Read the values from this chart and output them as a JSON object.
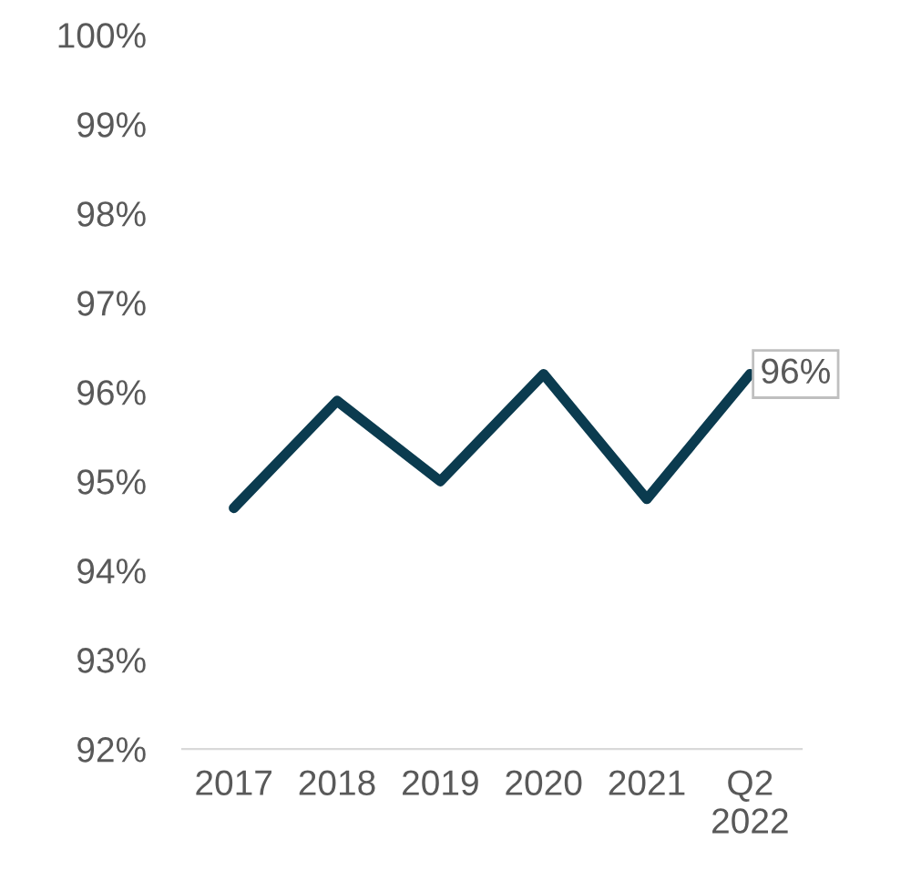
{
  "chart_data": {
    "type": "line",
    "categories": [
      "2017",
      "2018",
      "2019",
      "2020",
      "2021",
      "Q2\n2022"
    ],
    "series": [
      {
        "color": "#0b3b4f",
        "values": [
          94.7,
          95.9,
          95.0,
          96.2,
          94.8,
          96.2
        ],
        "value_labels": [
          null,
          null,
          null,
          null,
          null,
          "96%"
        ]
      }
    ],
    "ylim": [
      92,
      100
    ],
    "yticks": [
      {
        "value": 92,
        "label": "92%"
      },
      {
        "value": 93,
        "label": "93%"
      },
      {
        "value": 94,
        "label": "94%"
      },
      {
        "value": 95,
        "label": "95%"
      },
      {
        "value": 96,
        "label": "96%"
      },
      {
        "value": 97,
        "label": "97%"
      },
      {
        "value": 98,
        "label": "98%"
      },
      {
        "value": 99,
        "label": "99%"
      },
      {
        "value": 100,
        "label": "100%"
      }
    ],
    "grid": false,
    "legend": false,
    "marker": "none",
    "line_style": "solid"
  }
}
